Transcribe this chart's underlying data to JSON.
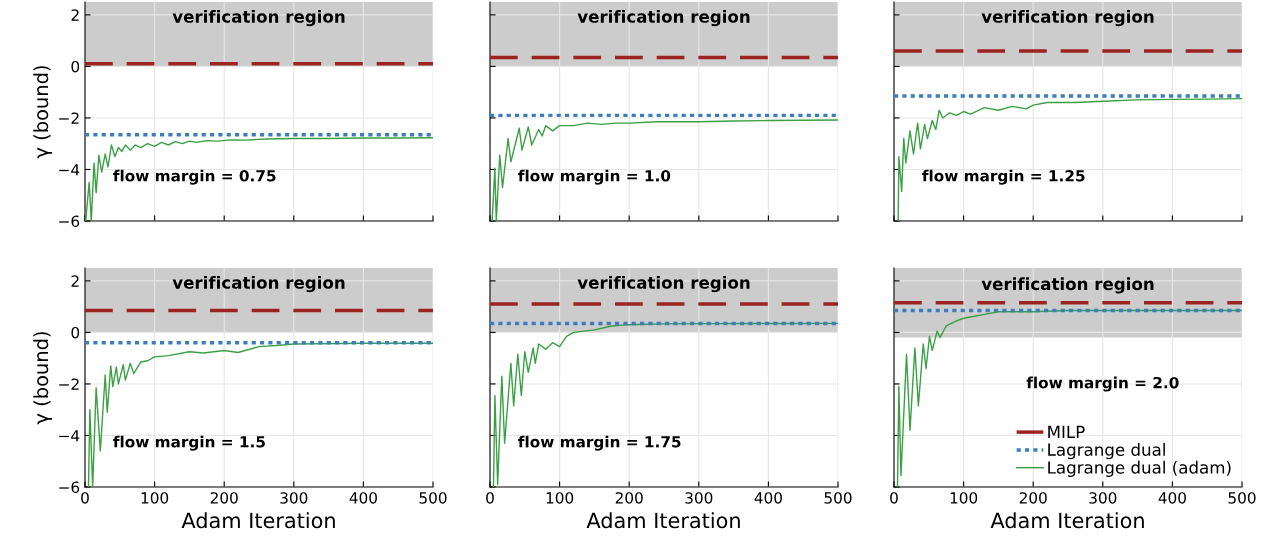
{
  "chart_data": [
    {
      "type": "line",
      "ylabel": "γ (bound)",
      "xlim": [
        0,
        500
      ],
      "ylim": [
        -6,
        2.5
      ],
      "xticks": [
        0,
        100,
        200,
        300,
        400,
        500
      ],
      "yticks": [
        {
          "value": -6,
          "label": "−6"
        },
        {
          "value": -4,
          "label": "−4"
        },
        {
          "value": -2,
          "label": "−2"
        },
        {
          "value": 0,
          "label": "0"
        },
        {
          "value": 2,
          "label": "2"
        }
      ],
      "tick_labels": "y",
      "grid": true,
      "legend": false,
      "marker": "none",
      "bands": [
        {
          "axis": "y",
          "from": 0,
          "to": 2.5,
          "label": "verification region",
          "color": "#cccccc"
        }
      ],
      "annotations": [
        "flow margin = 0.75"
      ],
      "series": [
        {
          "color": "#9b2423",
          "line_style": "dashed",
          "x": [
            0,
            500
          ],
          "values": [
            0.1,
            0.1
          ]
        },
        {
          "color": "#3a7ebf",
          "line_style": "dotted",
          "x": [
            0,
            500
          ],
          "values": [
            -2.65,
            -2.65
          ]
        },
        {
          "color": "#3aa043",
          "line_style": "solid",
          "x": [
            1,
            6,
            9,
            13,
            16,
            20,
            24,
            29,
            33,
            38,
            43,
            48,
            53,
            58,
            65,
            72,
            80,
            90,
            100,
            110,
            120,
            130,
            140,
            150,
            160,
            175,
            190,
            210,
            230,
            260,
            300,
            350,
            400,
            450,
            500
          ],
          "values": [
            -6,
            -4.5,
            -6,
            -3.75,
            -4.9,
            -3.45,
            -4.1,
            -3.4,
            -3.9,
            -3.05,
            -3.5,
            -3.15,
            -3.3,
            -3.05,
            -3.25,
            -3.05,
            -3.15,
            -3.0,
            -3.1,
            -2.95,
            -3.05,
            -2.92,
            -3.0,
            -2.9,
            -2.95,
            -2.88,
            -2.9,
            -2.85,
            -2.86,
            -2.82,
            -2.8,
            -2.8,
            -2.78,
            -2.78,
            -2.77
          ]
        }
      ]
    },
    {
      "type": "line",
      "xlim": [
        0,
        500
      ],
      "ylim": [
        -6,
        2.5
      ],
      "xticks": [
        0,
        100,
        200,
        300,
        400,
        500
      ],
      "yticks": [
        -6,
        -4,
        -2,
        0,
        2
      ],
      "tick_labels": false,
      "grid": true,
      "legend": false,
      "marker": "none",
      "bands": [
        {
          "axis": "y",
          "from": 0,
          "to": 2.5,
          "label": "verification region",
          "color": "#cccccc"
        }
      ],
      "annotations": [
        "flow margin = 1.0"
      ],
      "series": [
        {
          "color": "#9b2423",
          "line_style": "dashed",
          "x": [
            0,
            500
          ],
          "values": [
            0.35,
            0.35
          ]
        },
        {
          "color": "#3a7ebf",
          "line_style": "dotted",
          "x": [
            0,
            500
          ],
          "values": [
            -1.9,
            -1.9
          ]
        },
        {
          "color": "#3aa043",
          "line_style": "solid",
          "x": [
            3,
            7,
            9,
            14,
            18,
            26,
            30,
            42,
            46,
            55,
            60,
            70,
            75,
            80,
            90,
            100,
            120,
            140,
            160,
            180,
            200,
            240,
            300,
            350,
            400,
            500
          ],
          "values": [
            -6,
            -3.95,
            -6,
            -3.45,
            -4.7,
            -2.8,
            -3.7,
            -2.4,
            -3.25,
            -2.35,
            -3.05,
            -2.45,
            -2.7,
            -2.3,
            -2.5,
            -2.3,
            -2.3,
            -2.2,
            -2.25,
            -2.2,
            -2.2,
            -2.15,
            -2.15,
            -2.12,
            -2.1,
            -2.08
          ]
        }
      ]
    },
    {
      "type": "line",
      "xlim": [
        0,
        500
      ],
      "ylim": [
        -6,
        2.5
      ],
      "xticks": [
        0,
        100,
        200,
        300,
        400,
        500
      ],
      "yticks": [
        -6,
        -4,
        -2,
        0,
        2
      ],
      "tick_labels": false,
      "grid": true,
      "legend": false,
      "marker": "none",
      "bands": [
        {
          "axis": "y",
          "from": 0,
          "to": 2.5,
          "label": "verification region",
          "color": "#cccccc"
        }
      ],
      "annotations": [
        "flow margin = 1.25"
      ],
      "series": [
        {
          "color": "#9b2423",
          "line_style": "dashed",
          "x": [
            0,
            500
          ],
          "values": [
            0.6,
            0.6
          ]
        },
        {
          "color": "#3a7ebf",
          "line_style": "dotted",
          "x": [
            0,
            500
          ],
          "values": [
            -1.15,
            -1.15
          ]
        },
        {
          "color": "#3aa043",
          "line_style": "solid",
          "x": [
            6,
            7,
            11,
            14,
            17,
            23,
            28,
            34,
            38,
            44,
            48,
            55,
            60,
            65,
            70,
            80,
            90,
            100,
            110,
            130,
            150,
            170,
            190,
            200,
            220,
            260,
            300,
            350,
            400,
            450,
            500
          ],
          "values": [
            -6,
            -3.5,
            -4.85,
            -2.8,
            -3.75,
            -2.5,
            -3.4,
            -2.2,
            -3.2,
            -2.25,
            -2.8,
            -2.1,
            -2.45,
            -1.7,
            -2.0,
            -1.8,
            -1.9,
            -1.75,
            -1.85,
            -1.6,
            -1.7,
            -1.55,
            -1.65,
            -1.5,
            -1.4,
            -1.4,
            -1.35,
            -1.3,
            -1.28,
            -1.27,
            -1.25
          ]
        }
      ]
    },
    {
      "type": "line",
      "xlabel": "Adam Iteration",
      "ylabel": "γ (bound)",
      "xlim": [
        0,
        500
      ],
      "ylim": [
        -6,
        2.5
      ],
      "xticks": [
        0,
        100,
        200,
        300,
        400,
        500
      ],
      "yticks": [
        {
          "value": -6,
          "label": "−6"
        },
        {
          "value": -4,
          "label": "−4"
        },
        {
          "value": -2,
          "label": "−2"
        },
        {
          "value": 0,
          "label": "0"
        },
        {
          "value": 2,
          "label": "2"
        }
      ],
      "grid": true,
      "legend": false,
      "marker": "none",
      "bands": [
        {
          "axis": "y",
          "from": 0,
          "to": 2.5,
          "label": "verification region",
          "color": "#cccccc"
        }
      ],
      "annotations": [
        "flow margin = 1.5"
      ],
      "series": [
        {
          "color": "#9b2423",
          "line_style": "dashed",
          "x": [
            0,
            500
          ],
          "values": [
            0.85,
            0.85
          ]
        },
        {
          "color": "#3a7ebf",
          "line_style": "dotted",
          "x": [
            0,
            500
          ],
          "values": [
            -0.4,
            -0.4
          ]
        },
        {
          "color": "#3aa043",
          "line_style": "solid",
          "x": [
            5,
            7,
            11,
            16,
            22,
            29,
            32,
            37,
            40,
            45,
            48,
            55,
            58,
            65,
            70,
            80,
            90,
            100,
            120,
            150,
            170,
            200,
            220,
            250,
            280,
            300,
            400,
            500
          ],
          "values": [
            -6,
            -3.0,
            -6,
            -2.15,
            -4.6,
            -1.65,
            -3.1,
            -1.3,
            -2.1,
            -1.35,
            -2.0,
            -1.25,
            -1.85,
            -1.2,
            -1.6,
            -1.15,
            -1.1,
            -0.95,
            -0.9,
            -0.75,
            -0.8,
            -0.7,
            -0.78,
            -0.55,
            -0.5,
            -0.45,
            -0.42,
            -0.42
          ]
        }
      ]
    },
    {
      "type": "line",
      "xlabel": "Adam Iteration",
      "xlim": [
        0,
        500
      ],
      "ylim": [
        -6,
        2.5
      ],
      "xticks": [
        0,
        100,
        200,
        300,
        400,
        500
      ],
      "yticks": [
        -6,
        -4,
        -2,
        0,
        2
      ],
      "tick_labels": "x",
      "grid": true,
      "legend": false,
      "marker": "none",
      "bands": [
        {
          "axis": "y",
          "from": 0,
          "to": 2.5,
          "label": "verification region",
          "color": "#cccccc"
        }
      ],
      "annotations": [
        "flow margin = 1.75"
      ],
      "series": [
        {
          "color": "#9b2423",
          "line_style": "dashed",
          "x": [
            0,
            500
          ],
          "values": [
            1.1,
            1.1
          ]
        },
        {
          "color": "#3a7ebf",
          "line_style": "dotted",
          "x": [
            0,
            500
          ],
          "values": [
            0.35,
            0.35
          ]
        },
        {
          "color": "#3aa043",
          "line_style": "solid",
          "x": [
            5,
            7,
            11,
            17,
            21,
            30,
            34,
            40,
            45,
            50,
            55,
            62,
            65,
            70,
            80,
            90,
            100,
            110,
            120,
            150,
            175,
            200,
            250,
            300,
            500
          ],
          "values": [
            -6,
            -2.45,
            -5.9,
            -1.7,
            -4.3,
            -1.2,
            -2.85,
            -0.85,
            -2.45,
            -0.75,
            -1.55,
            -0.6,
            -1.2,
            -0.45,
            -0.65,
            -0.4,
            -0.55,
            -0.15,
            0.0,
            0.1,
            0.25,
            0.3,
            0.33,
            0.34,
            0.35
          ]
        }
      ]
    },
    {
      "type": "line",
      "xlabel": "Adam Iteration",
      "xlim": [
        0,
        500
      ],
      "ylim": [
        -6,
        2.5
      ],
      "xticks": [
        0,
        100,
        200,
        300,
        400,
        500
      ],
      "yticks": [
        -6,
        -4,
        -2,
        0,
        2
      ],
      "tick_labels": "x",
      "grid": true,
      "legend": "bottom right",
      "marker": "none",
      "bands": [
        {
          "axis": "y",
          "from": -0.2,
          "to": 2.5,
          "label": "verification region",
          "color": "#cccccc"
        }
      ],
      "annotations": [
        "flow margin = 2.0"
      ],
      "series": [
        {
          "name": "MILP",
          "color": "#9b2423",
          "line_style": "dashed",
          "x": [
            0,
            500
          ],
          "values": [
            1.15,
            1.15
          ]
        },
        {
          "name": "Lagrange dual",
          "color": "#3a7ebf",
          "line_style": "dotted",
          "x": [
            0,
            500
          ],
          "values": [
            0.85,
            0.85
          ]
        },
        {
          "name": "Lagrange dual (adam)",
          "color": "#3aa043",
          "line_style": "solid",
          "x": [
            5,
            7,
            10,
            18,
            23,
            30,
            35,
            42,
            46,
            51,
            55,
            62,
            66,
            75,
            90,
            100,
            110,
            130,
            150,
            175,
            200,
            250,
            300,
            500
          ],
          "values": [
            -6,
            -2.1,
            -5.55,
            -0.85,
            -3.8,
            -0.6,
            -2.85,
            -0.45,
            -1.4,
            -0.15,
            -0.7,
            0.05,
            -0.2,
            0.25,
            0.45,
            0.55,
            0.6,
            0.7,
            0.8,
            0.8,
            0.8,
            0.85,
            0.85,
            0.85
          ]
        }
      ]
    }
  ]
}
